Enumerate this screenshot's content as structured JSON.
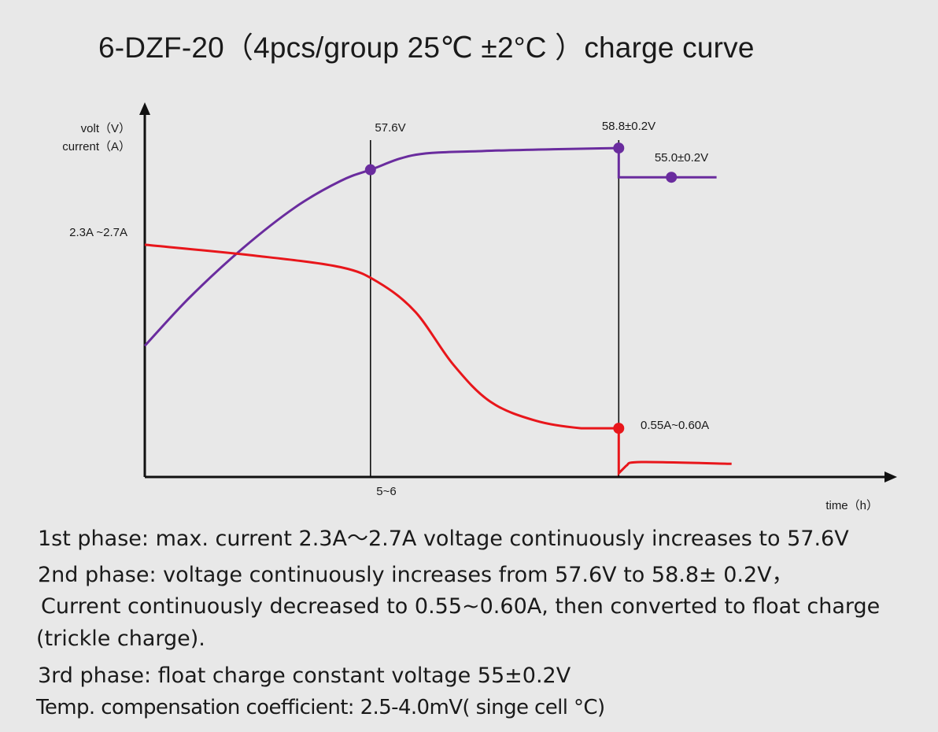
{
  "title": "6-DZF-20（4pcs/group  25℃ ±2°C ）charge curve",
  "chart_data": {
    "type": "line",
    "ylabel_lines": [
      "volt（V）",
      "current（A）"
    ],
    "xlabel": "time（h）",
    "tick_labels": {
      "x": [
        "5~6"
      ],
      "y": [
        "2.3A ~2.7A"
      ]
    },
    "annotations": [
      "57.6V",
      "58.8±0.2V",
      "55.0±0.2V",
      "0.55A~0.60A"
    ],
    "colors": {
      "voltage": "#6a2c9e",
      "current": "#e8161b",
      "axis": "#111111"
    },
    "series": [
      {
        "key": "voltage",
        "points": [
          [
            0,
            0.35
          ],
          [
            0.06,
            0.48
          ],
          [
            0.13,
            0.61
          ],
          [
            0.2,
            0.72
          ],
          [
            0.26,
            0.79
          ],
          [
            0.3,
            0.82
          ],
          [
            0.36,
            0.86
          ],
          [
            0.45,
            0.87
          ],
          [
            0.55,
            0.875
          ],
          [
            0.63,
            0.878
          ],
          [
            0.63,
            0.8
          ],
          [
            0.72,
            0.8
          ],
          [
            0.76,
            0.8
          ]
        ]
      },
      {
        "key": "current",
        "points": [
          [
            0,
            0.62
          ],
          [
            0.15,
            0.59
          ],
          [
            0.26,
            0.56
          ],
          [
            0.31,
            0.52
          ],
          [
            0.36,
            0.44
          ],
          [
            0.41,
            0.3
          ],
          [
            0.46,
            0.2
          ],
          [
            0.52,
            0.15
          ],
          [
            0.58,
            0.13
          ],
          [
            0.63,
            0.13
          ],
          [
            0.63,
            0.01
          ],
          [
            0.64,
            0.03
          ],
          [
            0.66,
            0.04
          ],
          [
            0.78,
            0.035
          ]
        ]
      }
    ],
    "markers": [
      {
        "series": "voltage",
        "label": "57.6V",
        "point": [
          0.3,
          0.82
        ]
      },
      {
        "series": "voltage",
        "label": "58.8±0.2V",
        "point": [
          0.63,
          0.878
        ]
      },
      {
        "series": "voltage",
        "label": "55.0±0.2V",
        "point": [
          0.7,
          0.8
        ]
      },
      {
        "series": "current",
        "label": "0.55A~0.60A",
        "point": [
          0.63,
          0.13
        ]
      }
    ],
    "phase_boundaries_x": [
      0.3,
      0.63
    ],
    "grid": false,
    "legend": "none"
  },
  "notes": [
    "1st phase: max. current  2.3A～2.7A  voltage continuously increases to 57.6V",
    "2nd phase: voltage continuously increases from 57.6V to  58.8± 0.2V，",
    "Current continuously decreased to 0.55~0.60A, then converted to float charge",
    "(trickle charge).",
    "3rd phase: float charge constant voltage 55±0.2V",
    "Temp. compensation  coefficient:  2.5-4.0mV( singe cell °C)"
  ]
}
